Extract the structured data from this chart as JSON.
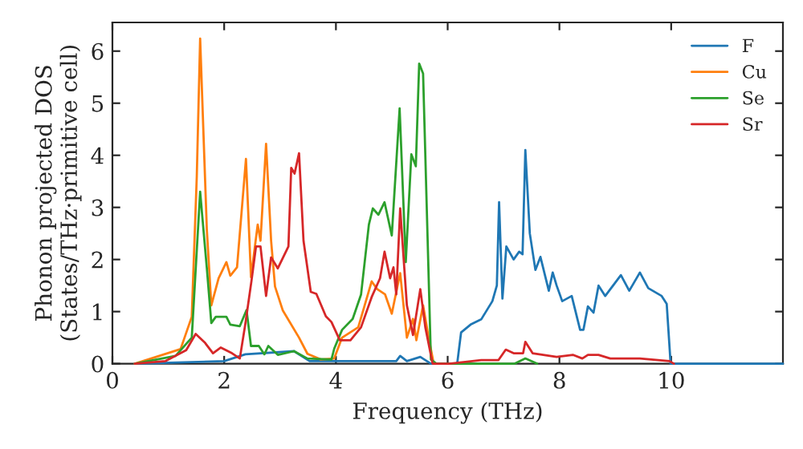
{
  "chart_data": {
    "type": "line",
    "xlabel": "Frequency (THz)",
    "ylabel": "Phonon projected DOS\n(States/THz·primitive cell)",
    "xlim": [
      0,
      12
    ],
    "xticks": [
      0,
      2,
      4,
      6,
      8,
      10
    ],
    "ylim": [
      0,
      6.55
    ],
    "yticks": [
      0,
      1,
      2,
      3,
      4,
      5,
      6
    ],
    "grid": false,
    "legend": "top right",
    "series": [
      {
        "name": "F",
        "color": "#1f77b4",
        "x": [
          0.4,
          2.0,
          2.38,
          3.25,
          3.53,
          5.08,
          5.15,
          5.27,
          5.51,
          5.7,
          6.14,
          6.17,
          6.24,
          6.41,
          6.6,
          6.8,
          6.88,
          6.92,
          6.98,
          7.05,
          7.18,
          7.28,
          7.34,
          7.39,
          7.47,
          7.57,
          7.66,
          7.81,
          7.88,
          7.95,
          8.05,
          8.22,
          8.37,
          8.43,
          8.51,
          8.61,
          8.7,
          8.82,
          9.1,
          9.25,
          9.44,
          9.59,
          9.83,
          9.92,
          9.99,
          12
        ],
        "values": [
          0,
          0.05,
          0.18,
          0.24,
          0.05,
          0.05,
          0.15,
          0.05,
          0.13,
          0,
          0,
          0,
          0.6,
          0.75,
          0.85,
          1.2,
          1.5,
          3.1,
          1.25,
          2.25,
          2.0,
          2.15,
          2.1,
          4.1,
          2.5,
          1.8,
          2.05,
          1.4,
          1.75,
          1.5,
          1.2,
          1.3,
          0.65,
          0.65,
          1.1,
          0.98,
          1.5,
          1.3,
          1.7,
          1.4,
          1.75,
          1.45,
          1.3,
          1.15,
          0,
          0
        ]
      },
      {
        "name": "Cu",
        "color": "#ff7f0e",
        "x": [
          0.4,
          1.22,
          1.42,
          1.51,
          1.57,
          1.69,
          1.77,
          1.9,
          2.04,
          2.11,
          2.23,
          2.39,
          2.48,
          2.6,
          2.65,
          2.75,
          2.84,
          2.91,
          3.05,
          3.34,
          3.49,
          3.73,
          3.97,
          4.11,
          4.4,
          4.64,
          4.74,
          4.88,
          5.0,
          5.15,
          5.27,
          5.38,
          5.44,
          5.56,
          5.66,
          5.75
        ],
        "values": [
          0,
          0.28,
          0.9,
          3.6,
          6.24,
          2.57,
          1.12,
          1.64,
          1.95,
          1.69,
          1.85,
          3.93,
          1.66,
          2.67,
          2.36,
          4.22,
          2.36,
          1.48,
          1.02,
          0.5,
          0.19,
          0.08,
          0.1,
          0.5,
          0.7,
          1.58,
          1.43,
          1.33,
          0.96,
          1.74,
          0.5,
          0.86,
          0.45,
          1.12,
          0.5,
          0
        ]
      },
      {
        "name": "Se",
        "color": "#2ca02c",
        "x": [
          0.4,
          1.13,
          1.42,
          1.57,
          1.69,
          1.77,
          1.85,
          2.04,
          2.11,
          2.28,
          2.4,
          2.48,
          2.62,
          2.72,
          2.79,
          2.96,
          3.25,
          3.49,
          3.92,
          3.97,
          4.11,
          4.3,
          4.45,
          4.59,
          4.66,
          4.76,
          4.87,
          5.0,
          5.14,
          5.25,
          5.35,
          5.43,
          5.49,
          5.56,
          5.7,
          5.8,
          7.2,
          7.39,
          7.6
        ],
        "values": [
          0,
          0.15,
          0.5,
          3.3,
          1.83,
          0.78,
          0.9,
          0.9,
          0.75,
          0.72,
          1.03,
          0.34,
          0.34,
          0.18,
          0.34,
          0.17,
          0.24,
          0.1,
          0.08,
          0.29,
          0.65,
          0.86,
          1.33,
          2.67,
          2.98,
          2.86,
          3.1,
          2.46,
          4.9,
          1.95,
          4.02,
          3.79,
          5.76,
          5.57,
          0.08,
          0,
          0,
          0.1,
          0
        ]
      },
      {
        "name": "Sr",
        "color": "#d62728",
        "x": [
          0.4,
          0.95,
          1.32,
          1.49,
          1.65,
          1.8,
          1.94,
          2.14,
          2.28,
          2.38,
          2.49,
          2.57,
          2.65,
          2.75,
          2.84,
          2.96,
          3.15,
          3.2,
          3.26,
          3.34,
          3.42,
          3.55,
          3.65,
          3.82,
          3.92,
          4.07,
          4.26,
          4.45,
          4.64,
          4.79,
          4.87,
          4.97,
          5.03,
          5.08,
          5.15,
          5.27,
          5.38,
          5.51,
          5.6,
          5.73,
          6.03,
          6.6,
          6.91,
          7.04,
          7.18,
          7.35,
          7.39,
          7.52,
          7.95,
          8.24,
          8.41,
          8.51,
          8.7,
          8.91,
          9.44,
          9.97,
          10.05
        ],
        "values": [
          0,
          0.05,
          0.26,
          0.57,
          0.41,
          0.2,
          0.31,
          0.2,
          0.1,
          0.77,
          1.6,
          2.25,
          2.25,
          1.3,
          2.04,
          1.83,
          2.25,
          3.76,
          3.65,
          4.04,
          2.36,
          1.38,
          1.34,
          0.91,
          0.8,
          0.45,
          0.45,
          0.7,
          1.28,
          1.64,
          2.15,
          1.64,
          1.85,
          1.33,
          2.98,
          1.12,
          0.55,
          1.43,
          0.7,
          0,
          0,
          0.07,
          0.07,
          0.27,
          0.2,
          0.2,
          0.42,
          0.2,
          0.13,
          0.17,
          0.1,
          0.17,
          0.17,
          0.1,
          0.1,
          0.05,
          0
        ]
      }
    ]
  }
}
